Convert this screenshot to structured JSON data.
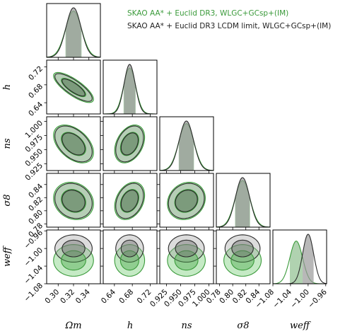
{
  "colors": {
    "green_edge": "#3a9a3a",
    "green_fill": "#7fd07f",
    "green_fill_inner": "#4fae4f",
    "dark_edge": "#2b2b2b",
    "dark_fill": "#9a9a9a",
    "dark_fill_inner": "#6e6e6e",
    "band_green": "#8fbf8f",
    "band_dark": "#9a9a9a"
  },
  "legend": [
    {
      "label": "SKAO AA* + Euclid DR3, WLGC+GCsp+(IM)",
      "color": "#3a9a3a"
    },
    {
      "label": "SKAO AA* + Euclid DR3 LCDM limit, WLGC+GCsp+(IM)",
      "color": "#222222"
    }
  ],
  "chart_data": {
    "type": "scatter",
    "subtype": "triangle (corner) plot of Fisher forecast constraints",
    "parameters": [
      {
        "id": "Om",
        "label": "Ωm",
        "tick_labels": [
          "0.30",
          "0.32",
          "0.34"
        ],
        "ticks": [
          0.3,
          0.32,
          0.34
        ],
        "range": [
          0.285,
          0.355
        ]
      },
      {
        "id": "h",
        "label": "h",
        "tick_labels": [
          "0.64",
          "0.68",
          "0.72"
        ],
        "ticks": [
          0.64,
          0.68,
          0.72
        ],
        "range": [
          0.615,
          0.735
        ]
      },
      {
        "id": "ns",
        "label": "ns",
        "tick_labels": [
          "0.925",
          "0.950",
          "0.975",
          "1.000"
        ],
        "ticks": [
          0.925,
          0.95,
          0.975,
          1.0
        ],
        "range": [
          0.913,
          1.008
        ]
      },
      {
        "id": "s8",
        "label": "σ8",
        "tick_labels": [
          "0.78",
          "0.80",
          "0.82",
          "0.84"
        ],
        "ticks": [
          0.78,
          0.8,
          0.82,
          0.84
        ],
        "range": [
          0.775,
          0.857
        ]
      },
      {
        "id": "weff",
        "label": "weff",
        "tick_labels": [
          "−1.08",
          "−1.04",
          "−1.00",
          "−0.96"
        ],
        "ticks": [
          -1.08,
          -1.04,
          -1.0,
          -0.96
        ],
        "range": [
          -1.08,
          -0.958
        ]
      }
    ],
    "series": [
      {
        "name": "SKAO AA* + Euclid DR3, WLGC+GCsp+(IM)",
        "color": "#3a9a3a",
        "mean": {
          "Om": 0.32,
          "h": 0.674,
          "ns": 0.96,
          "s8": 0.815,
          "weff": -1.027
        },
        "sigma": {
          "Om": 0.0105,
          "h": 0.0135,
          "ns": 0.0135,
          "s8": 0.0115,
          "weff": 0.0145
        },
        "correlation": {
          "h|Om": -0.78,
          "ns|Om": -0.45,
          "ns|h": 0.35,
          "s8|Om": -0.15,
          "s8|h": 0.3,
          "s8|ns": 0.15,
          "weff|Om": 0.0,
          "weff|h": 0.0,
          "weff|ns": 0.0,
          "weff|s8": 0.0
        }
      },
      {
        "name": "SKAO AA* + Euclid DR3 LCDM limit, WLGC+GCsp+(IM)",
        "color": "#222222",
        "mean": {
          "Om": 0.32,
          "h": 0.674,
          "ns": 0.96,
          "s8": 0.815,
          "weff": -1.0
        },
        "sigma": {
          "Om": 0.0098,
          "h": 0.0125,
          "ns": 0.0128,
          "s8": 0.0108,
          "weff": 0.0125
        },
        "correlation": {
          "h|Om": -0.8,
          "ns|Om": -0.45,
          "ns|h": 0.35,
          "s8|Om": -0.15,
          "s8|h": 0.3,
          "s8|ns": 0.15,
          "weff|Om": 0.0,
          "weff|h": 0.0,
          "weff|ns": 0.0,
          "weff|s8": 0.0
        }
      }
    ],
    "contour_levels": [
      "1σ",
      "2σ"
    ]
  }
}
